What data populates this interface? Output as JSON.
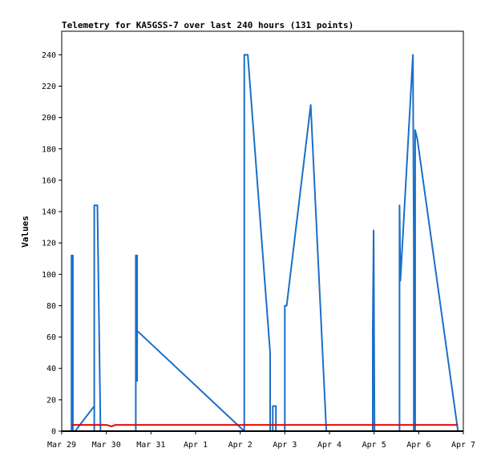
{
  "chart_data": {
    "type": "line",
    "title": "Telemetry for KA5GSS-7 over last 240 hours (131 points)",
    "xlabel": "",
    "ylabel": "Values",
    "x_ticks": [
      "Mar 29",
      "Mar 30",
      "Mar 31",
      "Apr 1",
      "Apr 2",
      "Apr 3",
      "Apr 4",
      "Apr 5",
      "Apr 6",
      "Apr 7"
    ],
    "xlim": [
      0,
      9
    ],
    "ylim": [
      0,
      255
    ],
    "y_ticks": [
      0,
      20,
      40,
      60,
      80,
      100,
      120,
      140,
      160,
      180,
      200,
      220,
      240
    ],
    "grid": false,
    "legend": "none",
    "series": [
      {
        "color": "#1a6fc8",
        "points": [
          [
            0.22,
            0
          ],
          [
            0.22,
            112
          ],
          [
            0.25,
            112
          ],
          [
            0.25,
            0
          ],
          [
            0.3,
            0
          ],
          [
            0.73,
            16
          ],
          [
            0.73,
            0
          ],
          [
            0.73,
            144
          ],
          [
            0.8,
            144
          ],
          [
            0.87,
            0
          ],
          [
            1.66,
            0
          ],
          [
            1.66,
            112
          ],
          [
            1.69,
            112
          ],
          [
            1.69,
            32
          ],
          [
            1.69,
            64
          ],
          [
            4.09,
            0
          ],
          [
            4.09,
            240
          ],
          [
            4.17,
            240
          ],
          [
            4.67,
            50
          ],
          [
            4.67,
            0
          ],
          [
            4.73,
            0
          ],
          [
            4.73,
            16
          ],
          [
            4.8,
            16
          ],
          [
            4.8,
            0
          ],
          [
            5.0,
            0
          ],
          [
            5.0,
            80
          ],
          [
            5.04,
            80
          ],
          [
            5.58,
            208
          ],
          [
            5.93,
            0
          ],
          [
            6.97,
            0
          ],
          [
            6.97,
            64
          ],
          [
            6.99,
            128
          ],
          [
            7.01,
            0
          ],
          [
            7.57,
            0
          ],
          [
            7.57,
            144
          ],
          [
            7.59,
            96
          ],
          [
            7.87,
            240
          ],
          [
            7.89,
            120
          ],
          [
            7.89,
            0
          ],
          [
            7.92,
            0
          ],
          [
            7.92,
            192
          ],
          [
            7.97,
            186
          ],
          [
            8.88,
            0
          ]
        ]
      },
      {
        "color": "#e00000",
        "points": [
          [
            0.22,
            4
          ],
          [
            1.0,
            4
          ],
          [
            1.12,
            3
          ],
          [
            1.2,
            4
          ],
          [
            8.88,
            4
          ]
        ]
      }
    ]
  }
}
